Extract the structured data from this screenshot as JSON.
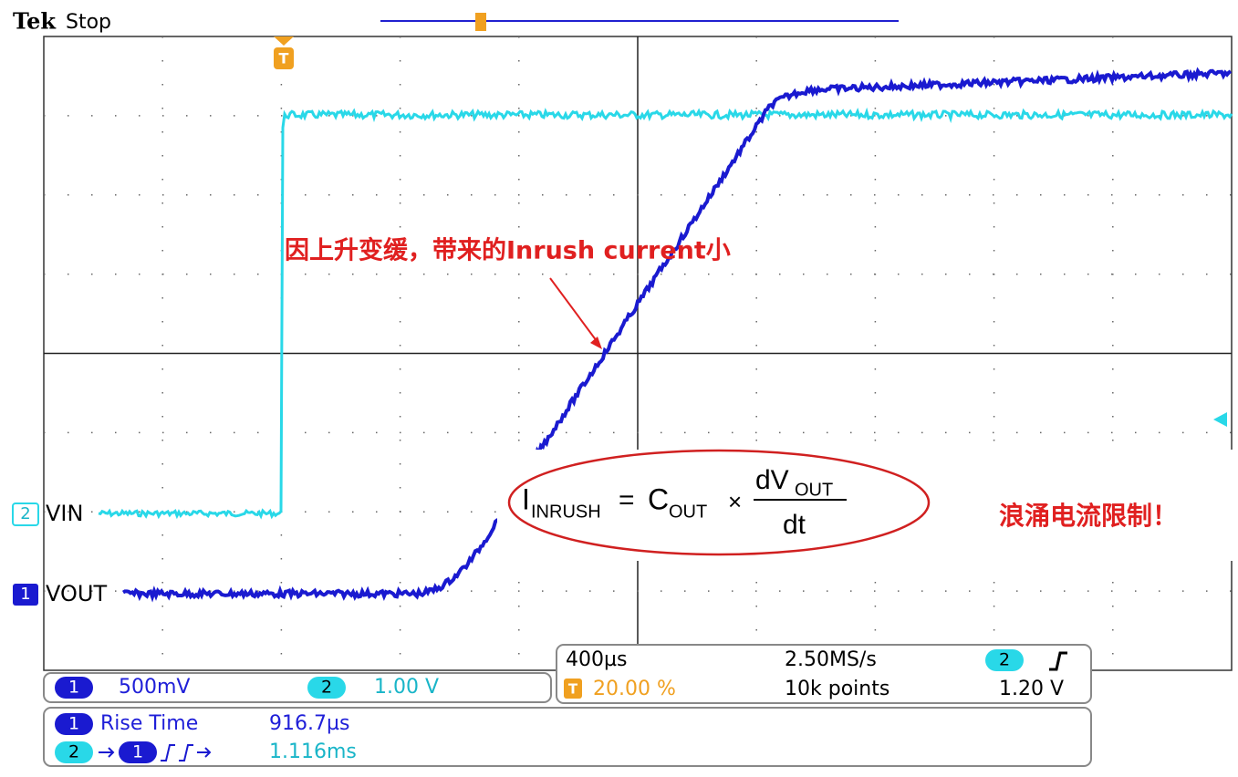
{
  "header": {
    "brand": "Tek",
    "status": "Stop"
  },
  "channels": [
    {
      "number": "2",
      "label": "VIN"
    },
    {
      "number": "1",
      "label": "VOUT"
    }
  ],
  "trigger_marker": "T",
  "annotation": "因上升变缓，带来的Inrush current小",
  "formula": {
    "i": "I",
    "i_sub": "INRUSH",
    "equals": "=",
    "c": "C",
    "c_sub": "OUT",
    "times": "×",
    "num": "dV",
    "num_sub": "OUT",
    "den": "dt"
  },
  "warning": "浪涌电流限制！",
  "vertical": {
    "ch1": "1",
    "ch1_scale": "500mV",
    "ch2": "2",
    "ch2_scale": "1.00 V"
  },
  "timebase": {
    "scale": "400µs",
    "rate": "2.50MS/s",
    "trig_source": "2",
    "position_icon": "T",
    "position": "20.00 %",
    "length": "10k points",
    "level": "1.20 V"
  },
  "measurements": {
    "rise_ch": "1",
    "rise_name": "Rise Time",
    "rise_value": "916.7µs",
    "delay_from": "2",
    "delay_to": "1",
    "delay_value": "1.116ms"
  }
}
